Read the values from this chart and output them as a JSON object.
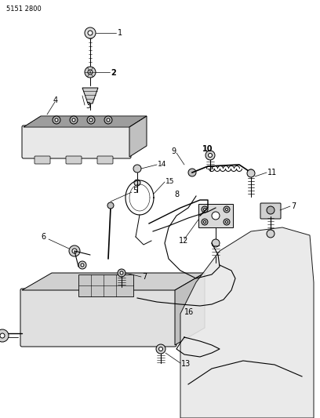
{
  "title_code": "5151 2800",
  "bg_color": "#ffffff",
  "fig_width": 4.08,
  "fig_height": 5.33,
  "dpi": 100,
  "lw": 0.7,
  "gray": "#999999",
  "darkgray": "#555555"
}
